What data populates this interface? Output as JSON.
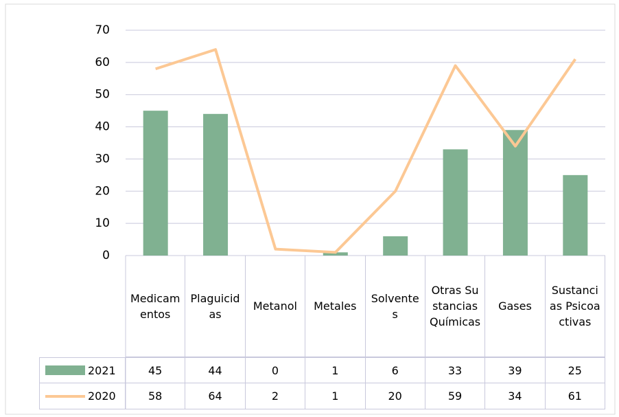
{
  "chart_data": {
    "type": "bar-line",
    "categories": [
      "Medicamentos",
      "Plaguicidas",
      "Metanol",
      "Metales",
      "Solventes",
      "Otras Sustancias Químicas",
      "Gases",
      "Sustancias Psicoactivas"
    ],
    "series": [
      {
        "name": "2021",
        "type": "bar",
        "color": "#80b191",
        "values": [
          45,
          44,
          0,
          1,
          6,
          33,
          39,
          25
        ]
      },
      {
        "name": "2020",
        "type": "line",
        "color": "#fcc894",
        "values": [
          58,
          64,
          2,
          1,
          20,
          59,
          34,
          61
        ]
      }
    ],
    "ylim": [
      0,
      70
    ],
    "yticks": [
      0,
      10,
      20,
      30,
      40,
      50,
      60,
      70
    ],
    "grid": true
  }
}
